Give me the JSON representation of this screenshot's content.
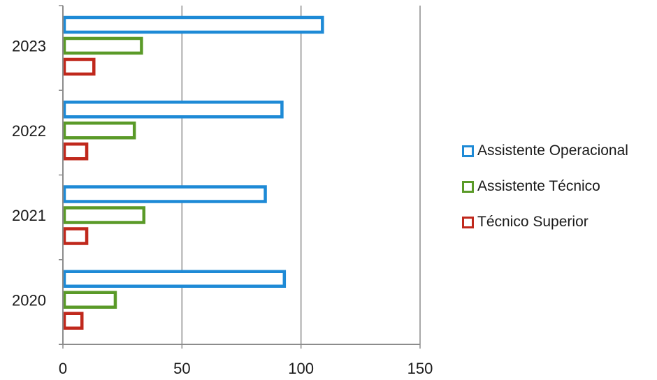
{
  "chart_data": {
    "type": "bar",
    "orientation": "horizontal",
    "categories": [
      "2020",
      "2021",
      "2022",
      "2023"
    ],
    "series": [
      {
        "name": "Assistente Operacional",
        "values": [
          93,
          85,
          92,
          109
        ],
        "color": "#1e8ad6"
      },
      {
        "name": "Assistente Técnico",
        "values": [
          22,
          34,
          30,
          33
        ],
        "color": "#5a9a28"
      },
      {
        "name": "Técnico Superior",
        "values": [
          8,
          10,
          10,
          13
        ],
        "color": "#c0281c"
      }
    ],
    "x_ticks": [
      "0",
      "50",
      "100",
      "150"
    ],
    "xlim": [
      0,
      150
    ],
    "title": "",
    "xlabel": "",
    "ylabel": "",
    "grid": "vertical",
    "legend_position": "right"
  }
}
